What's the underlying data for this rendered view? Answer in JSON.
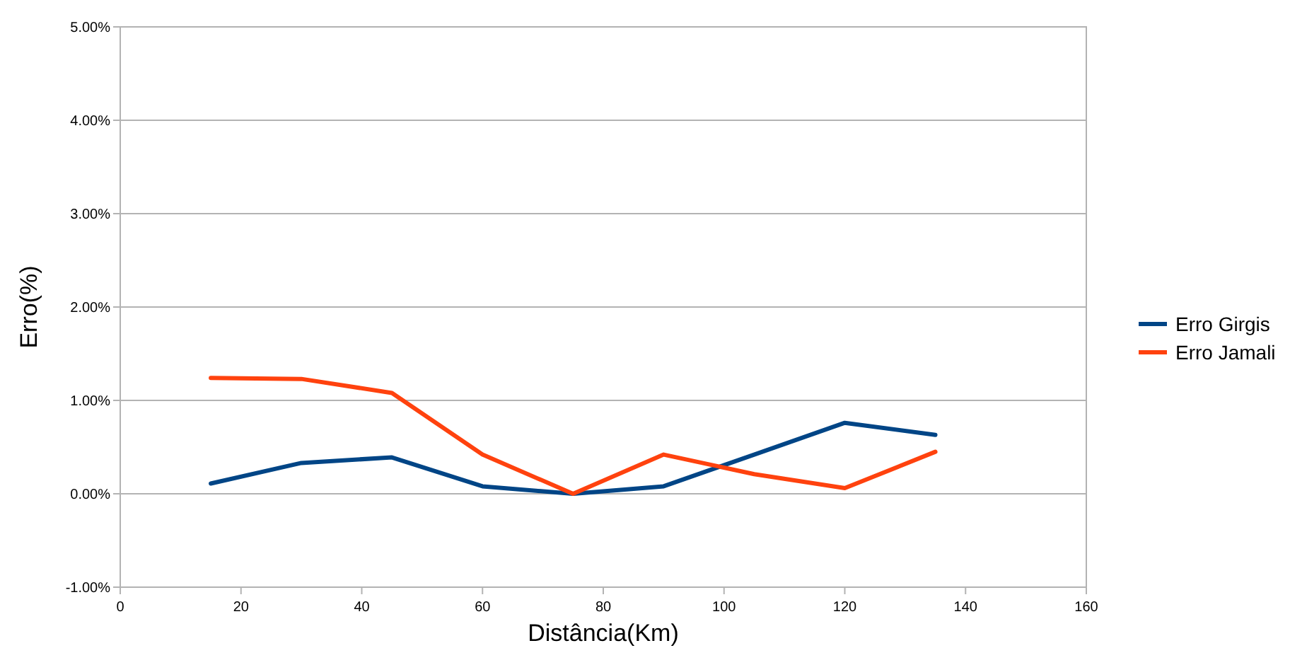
{
  "chart_data": {
    "type": "line",
    "xlabel": "Distância(Km)",
    "ylabel": "Erro(%)",
    "x": [
      15,
      30,
      45,
      60,
      75,
      90,
      105,
      120,
      135
    ],
    "series": [
      {
        "name": "Erro Girgis",
        "color": "#004586",
        "values": [
          0.11,
          0.33,
          0.39,
          0.08,
          0.0,
          0.08,
          0.42,
          0.76,
          0.63
        ]
      },
      {
        "name": "Erro Jamali",
        "color": "#ff420e",
        "values": [
          1.24,
          1.23,
          1.08,
          0.42,
          0.0,
          0.42,
          0.21,
          0.06,
          0.45
        ]
      }
    ],
    "xlim": [
      0,
      160
    ],
    "xticks": [
      0,
      20,
      40,
      60,
      80,
      100,
      120,
      140,
      160
    ],
    "ylim": [
      -1,
      5
    ],
    "yticks": [
      {
        "value": -1,
        "label": "-1.00%"
      },
      {
        "value": 0,
        "label": "0.00%"
      },
      {
        "value": 1,
        "label": "1.00%"
      },
      {
        "value": 2,
        "label": "2.00%"
      },
      {
        "value": 3,
        "label": "3.00%"
      },
      {
        "value": 4,
        "label": "4.00%"
      },
      {
        "value": 5,
        "label": "5.00%"
      }
    ],
    "grid": "y",
    "legend": "right",
    "marker": "none",
    "line_style": "solid"
  }
}
